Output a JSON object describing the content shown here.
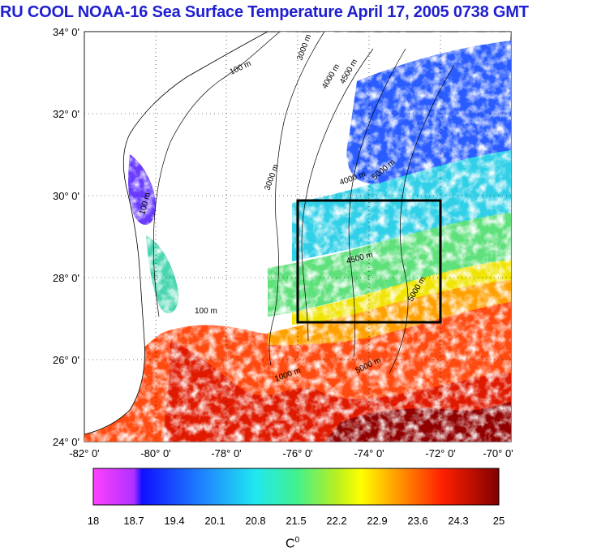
{
  "title": "RU COOL  NOAA-16 Sea Surface Temperature April 17, 2005 0738 GMT",
  "map": {
    "lat_ticks": [
      "34° 0'",
      "32° 0'",
      "30° 0'",
      "28° 0'",
      "26° 0'",
      "24° 0'"
    ],
    "lon_ticks": [
      "-82° 0'",
      "-80° 0'",
      "-78° 0'",
      "-76° 0'",
      "-74° 0'",
      "-72° 0'",
      "-70° 0'"
    ],
    "lat_range": [
      24,
      34
    ],
    "lon_range": [
      -82,
      -70
    ],
    "study_box": {
      "lon": [
        -76,
        -72
      ],
      "lat": [
        27,
        30
      ]
    },
    "contour_labels": [
      "100 m",
      "1000 m",
      "3000 m",
      "4000 m",
      "4500 m",
      "5000 m"
    ]
  },
  "colorbar": {
    "ticks": [
      "18",
      "18.7",
      "19.4",
      "20.1",
      "20.8",
      "21.5",
      "22.2",
      "22.9",
      "23.6",
      "24.3",
      "25"
    ],
    "range": [
      18,
      25
    ],
    "unit_base": "C",
    "unit_sup": "0"
  },
  "colors": {
    "title": "#1f1fd0",
    "land": "#ffffff",
    "cloud": "#ffffff",
    "box": "#000000"
  }
}
